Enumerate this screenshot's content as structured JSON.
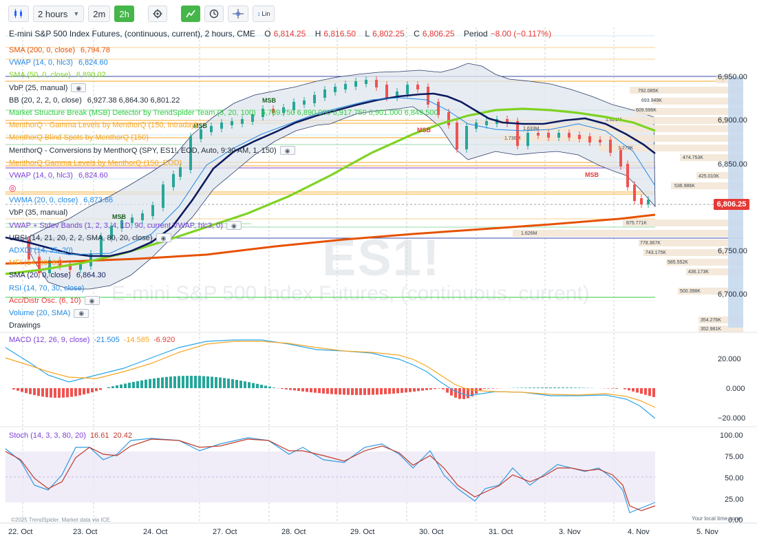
{
  "toolbar": {
    "chart_type_icon": "candles-icon",
    "interval": "2 hours",
    "quick_intervals": [
      "2m",
      "2h"
    ],
    "active_interval": "2h",
    "settings_icon": "gear-icon",
    "tools": [
      "draw-icon",
      "clock-icon",
      "crosshair-icon"
    ],
    "scale_mode": "Lin"
  },
  "header": {
    "title": "E-mini S&P 500 Index Futures, (continuous, current), 2 hours, CME",
    "open_label": "O",
    "open": "6,814.25",
    "high_label": "H",
    "high": "6,816.50",
    "low_label": "L",
    "low": "6,802.25",
    "close_label": "C",
    "close": "6,806.25",
    "period_label": "Period",
    "period_change": "−8.00 (−0.117%)"
  },
  "indicators": [
    {
      "name": "SMA (200, 0, close)",
      "value": "6,794.78",
      "color": "#e65100"
    },
    {
      "name": "VWAP (14, 0, hlc3)",
      "value": "6,824.60",
      "color": "#1e88e5"
    },
    {
      "name": "SMA (50, 0, close)",
      "value": "6,890.02",
      "color": "#7ed321"
    },
    {
      "name": "VbP (25, manual)",
      "value": "",
      "color": "#1f2a36",
      "eye": true
    },
    {
      "name": "BB (20, 2, 2, 0, close)",
      "value": "6,927.38 6,864.30 6,801.22",
      "color": "#1f2a36"
    },
    {
      "name": "Market Structure Break (MSB) Detector by TrendSpider Team (3, 20, 100)",
      "value": "6,789.750 6,890.000 6,917.750 6,901.000 6,849.500",
      "color": "#2ecc40"
    },
    {
      "name": "MenthorQ - Gamma Levels by MenthorQ (150, Intraday)",
      "value": "",
      "color": "#f5a623"
    },
    {
      "name": "MenthorQ Blind Spots by MenthorQ (150)",
      "value": "",
      "color": "#f5a623"
    },
    {
      "name": "MenthorQ - Conversions by MenthorQ (SPY, ES1!, EOD, Auto, 9:30 AM, 1, 150)",
      "value": "",
      "color": "#1f2a36",
      "eye": true
    },
    {
      "name": "MenthorQ Gamma Levels by MenthorQ (150, EOD)",
      "value": "",
      "color": "#f5a623"
    },
    {
      "name": "VWAP (14, 0, hlc3)",
      "value": "6,824.60",
      "color": "#7b3fd6"
    },
    {
      "name": "",
      "value": "",
      "color": "#e91e63",
      "icon": "target-icon"
    },
    {
      "name": "VWMA (20, 0, close)",
      "value": "6,873.86",
      "color": "#1e88e5"
    },
    {
      "name": "VbP (35, manual)",
      "value": "",
      "color": "#1f2a36"
    },
    {
      "name": "VWAP + Stdev Bands (1, 2, 3, 4, 1D, 90, current VWAP, hlc3, 0)",
      "value": "",
      "color": "#7b3fd6",
      "eye": true
    },
    {
      "name": "URSI (14, 21, 20, 2, 2, SMA, 80, 20, close)",
      "value": "",
      "color": "#1f2a36",
      "eye": true
    },
    {
      "name": "ADXDI (14, 35, 20)",
      "value": "",
      "color": "#1e88e5"
    },
    {
      "name": "MFI (14, 20, 80)",
      "value": "",
      "color": "#f5a623"
    },
    {
      "name": "SMA (20, 0, close)",
      "value": "6,864.30",
      "color": "#0d1b5e"
    },
    {
      "name": "RSI (14, 70, 30, close)",
      "value": "",
      "color": "#1e88e5"
    },
    {
      "name": "Acc/Distr Osc. (6, 10)",
      "value": "",
      "color": "#e53935",
      "eye": true
    },
    {
      "name": "Volume (20, SMA)",
      "value": "",
      "color": "#1e88e5",
      "eye": true
    },
    {
      "name": "Drawings",
      "value": "",
      "color": "#1f2a36"
    }
  ],
  "watermark": {
    "symbol": "ES1!",
    "description": "E-mini S&P 500 Index Futures, (continuous, current)"
  },
  "price_axis": {
    "ticks": [
      "6,950.00",
      "6,900.00",
      "6,850.00",
      "6,750.00",
      "6,700.00"
    ],
    "last_price": "6,806.25"
  },
  "volume_profile": [
    "792.085K",
    "693.949K",
    "609.596K",
    "1.621M",
    "1.633M",
    "1.730M",
    "1.279K",
    "474.753K",
    "425.010K",
    "536.986K",
    "875.771K",
    "1.626M",
    "778.367K",
    "743.175K",
    "585.552K",
    "436.173K",
    "500.398K",
    "354.276K",
    "352.981K"
  ],
  "msb_labels": [
    "MSB",
    "MSB",
    "MSB",
    "MSB",
    "MSB"
  ],
  "macd": {
    "label": "MACD (12, 26, 9, close)",
    "macd": "-21.505",
    "signal": "-14.585",
    "hist": "-6.920",
    "ticks": [
      "20.000",
      "0.000",
      "−20.000"
    ]
  },
  "stoch": {
    "label": "Stoch (14, 3, 3, 80, 20)",
    "k": "16.61",
    "d": "20.42",
    "ticks": [
      "100.00",
      "75.00",
      "50.00",
      "25.00",
      "0.00"
    ]
  },
  "time_axis": [
    "22. Oct",
    "23. Oct",
    "24. Oct",
    "27. Oct",
    "28. Oct",
    "29. Oct",
    "30. Oct",
    "31. Oct",
    "3. Nov",
    "4. Nov",
    "5. Nov"
  ],
  "footer": {
    "copyright": "©2025 TrendSpider. Market data via ICE.",
    "timezone": "Your local time zone"
  },
  "colors": {
    "up": "#26a69a",
    "down": "#ef5350",
    "accent": "#45b649"
  }
}
